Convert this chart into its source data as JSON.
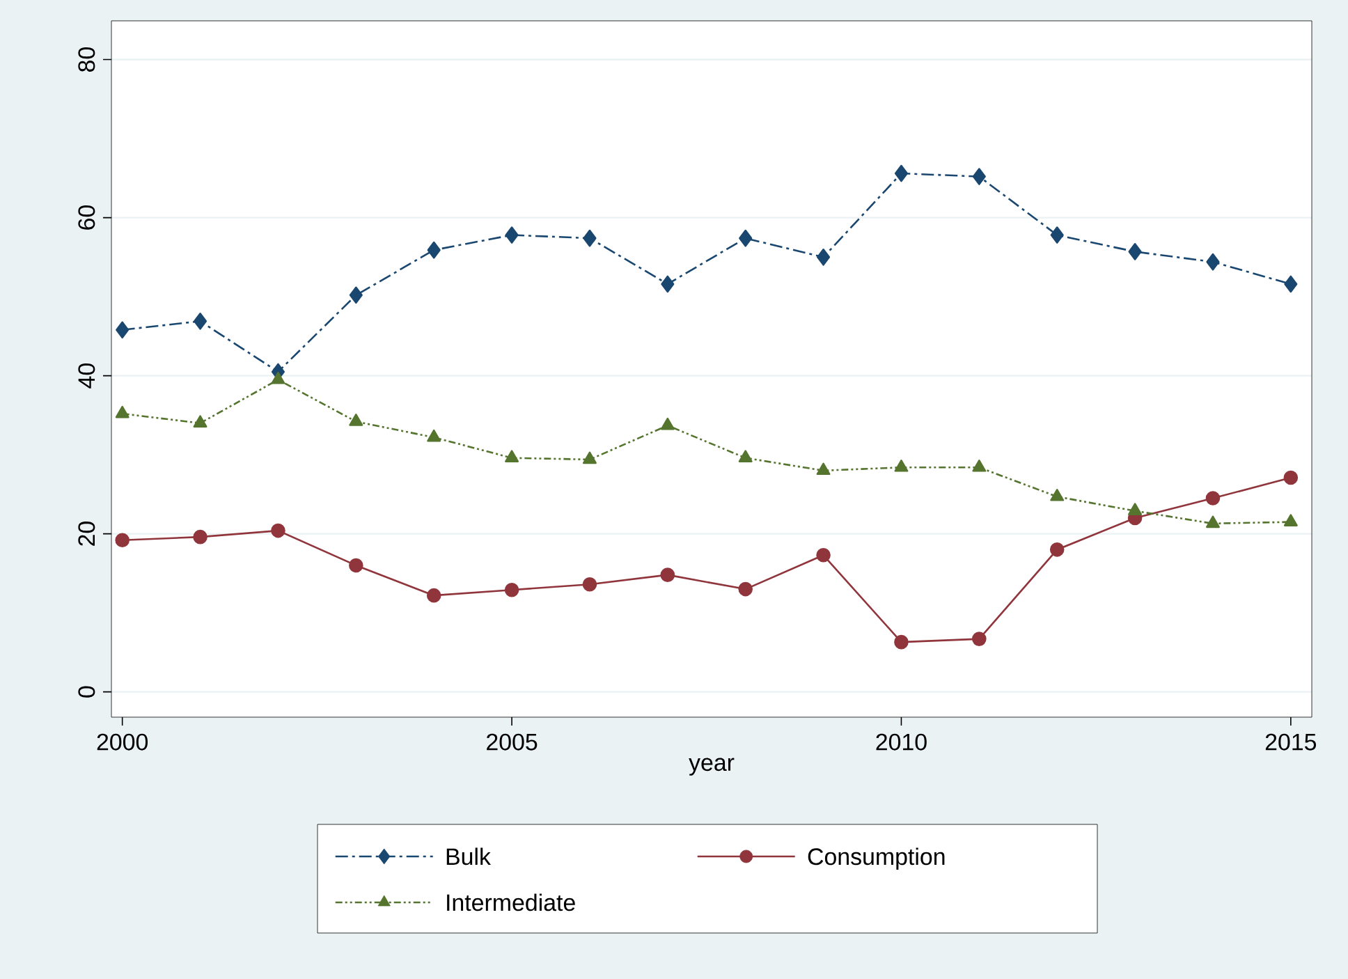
{
  "chart_data": {
    "type": "line",
    "xlabel": "year",
    "x": [
      2000,
      2001,
      2002,
      2003,
      2004,
      2005,
      2006,
      2007,
      2008,
      2009,
      2010,
      2011,
      2012,
      2013,
      2014,
      2015
    ],
    "series": [
      {
        "name": "Bulk",
        "color": "#1a476f",
        "marker": "diamond",
        "line_style": "dashed",
        "values": [
          45.8,
          46.9,
          40.5,
          50.2,
          55.9,
          57.8,
          57.4,
          51.6,
          57.4,
          55.0,
          65.6,
          65.2,
          57.8,
          55.7,
          54.4,
          51.6
        ]
      },
      {
        "name": "Consumption",
        "color": "#90353b",
        "marker": "circle",
        "line_style": "solid",
        "values": [
          19.2,
          19.6,
          20.4,
          16.0,
          12.2,
          12.9,
          13.6,
          14.8,
          13.0,
          17.3,
          6.3,
          6.7,
          18.0,
          22.0,
          24.5,
          27.1
        ]
      },
      {
        "name": "Intermediate",
        "color": "#55752f",
        "marker": "triangle",
        "line_style": "dotted",
        "values": [
          35.2,
          34.0,
          39.5,
          34.2,
          32.2,
          29.6,
          29.4,
          33.7,
          29.6,
          28.0,
          28.4,
          28.4,
          24.7,
          22.9,
          21.3,
          21.5
        ]
      }
    ],
    "xlim": [
      1999.86,
      2015.27
    ],
    "ylim": [
      -3.2,
      84.9
    ],
    "xticks": [
      2000,
      2005,
      2010,
      2015
    ],
    "yticks": [
      0,
      20,
      40,
      60,
      80
    ],
    "grid": "y",
    "legend": "bottom"
  }
}
